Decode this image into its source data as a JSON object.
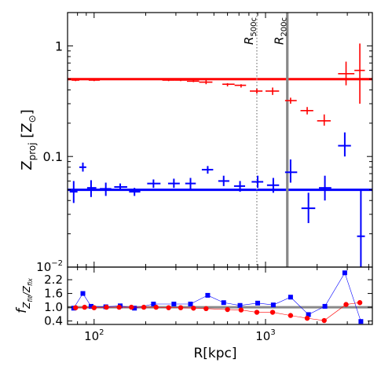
{
  "chart_data": [
    {
      "type": "scatter",
      "panel": "top",
      "xscale": "log",
      "yscale": "log",
      "xlim": [
        70,
        4200
      ],
      "ylim": [
        0.01,
        2.0
      ],
      "grid": false,
      "ylabel": "Z_proj [Z_⊙]",
      "ytick_labels": [
        "10^-2",
        "0.1",
        "1"
      ],
      "vlines": [
        {
          "label": "R_500c",
          "x": 890,
          "style": "dotted",
          "color": "#999999"
        },
        {
          "label": "R_200c",
          "x": 1340,
          "style": "solid",
          "color": "#888888"
        }
      ],
      "hlines": [
        {
          "y": 0.5,
          "color": "#ff0000"
        },
        {
          "y": 0.05,
          "color": "#0000ff"
        }
      ],
      "series": [
        {
          "color": "#ff0000",
          "points": [
            {
              "x": 78,
              "y": 0.49,
              "xlo": 74,
              "xhi": 82,
              "ylo": 0.48,
              "yhi": 0.5
            },
            {
              "x": 88,
              "y": 0.5,
              "xlo": 82,
              "xhi": 94,
              "ylo": 0.49,
              "yhi": 0.51
            },
            {
              "x": 100,
              "y": 0.49,
              "xlo": 93,
              "xhi": 108,
              "ylo": 0.48,
              "yhi": 0.5
            },
            {
              "x": 118,
              "y": 0.5,
              "xlo": 108,
              "xhi": 128,
              "ylo": 0.49,
              "yhi": 0.51
            },
            {
              "x": 140,
              "y": 0.5,
              "xlo": 128,
              "xhi": 152,
              "ylo": 0.49,
              "yhi": 0.51
            },
            {
              "x": 165,
              "y": 0.5,
              "xlo": 152,
              "xhi": 180,
              "ylo": 0.49,
              "yhi": 0.51
            },
            {
              "x": 195,
              "y": 0.5,
              "xlo": 180,
              "xhi": 212,
              "ylo": 0.49,
              "yhi": 0.51
            },
            {
              "x": 230,
              "y": 0.5,
              "xlo": 212,
              "xhi": 250,
              "ylo": 0.49,
              "yhi": 0.51
            },
            {
              "x": 272,
              "y": 0.49,
              "xlo": 250,
              "xhi": 295,
              "ylo": 0.48,
              "yhi": 0.5
            },
            {
              "x": 320,
              "y": 0.49,
              "xlo": 295,
              "xhi": 348,
              "ylo": 0.48,
              "yhi": 0.5
            },
            {
              "x": 380,
              "y": 0.48,
              "xlo": 348,
              "xhi": 410,
              "ylo": 0.47,
              "yhi": 0.5
            },
            {
              "x": 450,
              "y": 0.47,
              "xlo": 410,
              "xhi": 490,
              "ylo": 0.45,
              "yhi": 0.49
            },
            {
              "x": 600,
              "y": 0.45,
              "xlo": 560,
              "xhi": 660,
              "ylo": 0.43,
              "yhi": 0.46
            },
            {
              "x": 720,
              "y": 0.44,
              "xlo": 660,
              "xhi": 770,
              "ylo": 0.42,
              "yhi": 0.45
            },
            {
              "x": 890,
              "y": 0.39,
              "xlo": 810,
              "xhi": 960,
              "ylo": 0.37,
              "yhi": 0.41
            },
            {
              "x": 1100,
              "y": 0.39,
              "xlo": 1000,
              "xhi": 1200,
              "ylo": 0.36,
              "yhi": 0.42
            },
            {
              "x": 1400,
              "y": 0.32,
              "xlo": 1300,
              "xhi": 1520,
              "ylo": 0.3,
              "yhi": 0.34
            },
            {
              "x": 1750,
              "y": 0.26,
              "xlo": 1600,
              "xhi": 1900,
              "ylo": 0.24,
              "yhi": 0.28
            },
            {
              "x": 2200,
              "y": 0.21,
              "xlo": 2000,
              "xhi": 2400,
              "ylo": 0.19,
              "yhi": 0.24
            },
            {
              "x": 2950,
              "y": 0.56,
              "xlo": 2650,
              "xhi": 3300,
              "ylo": 0.44,
              "yhi": 0.72
            },
            {
              "x": 3550,
              "y": 0.6,
              "xlo": 3300,
              "xhi": 3800,
              "ylo": 0.3,
              "yhi": 1.05
            }
          ]
        },
        {
          "color": "#0000ff",
          "points": [
            {
              "x": 76,
              "y": 0.048,
              "xlo": 72,
              "xhi": 80,
              "ylo": 0.038,
              "yhi": 0.06
            },
            {
              "x": 86,
              "y": 0.08,
              "xlo": 82,
              "xhi": 90,
              "ylo": 0.073,
              "yhi": 0.088
            },
            {
              "x": 96,
              "y": 0.052,
              "xlo": 91,
              "xhi": 103,
              "ylo": 0.043,
              "yhi": 0.061
            },
            {
              "x": 117,
              "y": 0.051,
              "xlo": 108,
              "xhi": 126,
              "ylo": 0.044,
              "yhi": 0.058
            },
            {
              "x": 142,
              "y": 0.053,
              "xlo": 131,
              "xhi": 156,
              "ylo": 0.049,
              "yhi": 0.057
            },
            {
              "x": 172,
              "y": 0.048,
              "xlo": 160,
              "xhi": 186,
              "ylo": 0.044,
              "yhi": 0.052
            },
            {
              "x": 222,
              "y": 0.057,
              "xlo": 204,
              "xhi": 244,
              "ylo": 0.052,
              "yhi": 0.062
            },
            {
              "x": 292,
              "y": 0.057,
              "xlo": 270,
              "xhi": 316,
              "ylo": 0.052,
              "yhi": 0.063
            },
            {
              "x": 365,
              "y": 0.057,
              "xlo": 340,
              "xhi": 392,
              "ylo": 0.051,
              "yhi": 0.064
            },
            {
              "x": 460,
              "y": 0.076,
              "xlo": 425,
              "xhi": 495,
              "ylo": 0.07,
              "yhi": 0.082
            },
            {
              "x": 570,
              "y": 0.06,
              "xlo": 530,
              "xhi": 615,
              "ylo": 0.054,
              "yhi": 0.067
            },
            {
              "x": 710,
              "y": 0.054,
              "xlo": 655,
              "xhi": 760,
              "ylo": 0.048,
              "yhi": 0.06
            },
            {
              "x": 900,
              "y": 0.059,
              "xlo": 830,
              "xhi": 970,
              "ylo": 0.052,
              "yhi": 0.067
            },
            {
              "x": 1110,
              "y": 0.055,
              "xlo": 1020,
              "xhi": 1200,
              "ylo": 0.047,
              "yhi": 0.064
            },
            {
              "x": 1400,
              "y": 0.072,
              "xlo": 1300,
              "xhi": 1530,
              "ylo": 0.058,
              "yhi": 0.094
            },
            {
              "x": 1780,
              "y": 0.034,
              "xlo": 1620,
              "xhi": 1950,
              "ylo": 0.025,
              "yhi": 0.047
            },
            {
              "x": 2220,
              "y": 0.052,
              "xlo": 2050,
              "xhi": 2420,
              "ylo": 0.04,
              "yhi": 0.067
            },
            {
              "x": 2900,
              "y": 0.125,
              "xlo": 2650,
              "xhi": 3150,
              "ylo": 0.1,
              "yhi": 0.165
            },
            {
              "x": 3600,
              "y": 0.019,
              "xlo": 3420,
              "xhi": 3800,
              "ylo": 0.01,
              "yhi": 0.05
            }
          ]
        }
      ]
    },
    {
      "type": "line",
      "panel": "bottom",
      "xscale": "log",
      "xlim": [
        70,
        4200
      ],
      "ylim": [
        0.25,
        2.75
      ],
      "yticks": [
        0.4,
        1.0,
        1.6,
        2.2
      ],
      "ytick_labels": [
        "0.4",
        "1.0",
        "1.6",
        "2.2"
      ],
      "xtick_labels": [
        "10^2",
        "10^3"
      ],
      "xlabel": "R[kpc]",
      "ylabel": "f_{Z_fit/Z_fix}",
      "hline": 1.0,
      "series": [
        {
          "color": "#0000ff",
          "marker": "square",
          "x": [
            76,
            86,
            96,
            117,
            142,
            172,
            222,
            292,
            365,
            460,
            570,
            710,
            900,
            1110,
            1400,
            1780,
            2220,
            2900,
            3600
          ],
          "y": [
            0.96,
            1.6,
            1.04,
            1.02,
            1.06,
            0.96,
            1.14,
            1.14,
            1.14,
            1.52,
            1.2,
            1.08,
            1.18,
            1.1,
            1.44,
            0.68,
            1.04,
            2.5,
            0.38
          ]
        },
        {
          "color": "#ff0000",
          "marker": "circle",
          "x": [
            78,
            88,
            100,
            118,
            140,
            165,
            195,
            230,
            272,
            320,
            380,
            450,
            600,
            720,
            890,
            1100,
            1400,
            1750,
            2200,
            2950,
            3550
          ],
          "y": [
            0.98,
            1.0,
            0.98,
            1.0,
            1.0,
            1.0,
            1.0,
            1.0,
            0.98,
            0.98,
            0.96,
            0.94,
            0.9,
            0.88,
            0.78,
            0.78,
            0.64,
            0.52,
            0.42,
            1.12,
            1.2
          ]
        }
      ]
    }
  ]
}
